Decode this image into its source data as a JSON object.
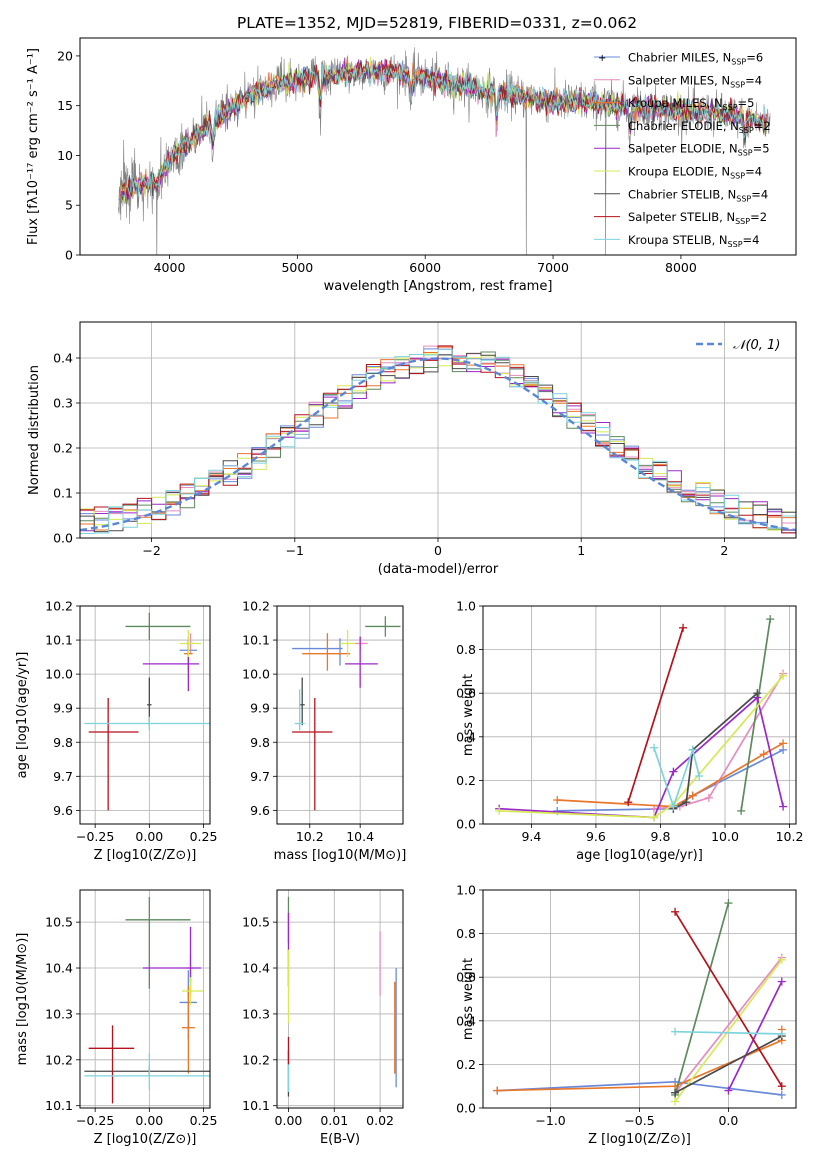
{
  "figure_title": "PLATE=1352, MJD=52819, FIBERID=0331, z=0.062",
  "models": [
    {
      "name": "Chabrier MILES",
      "nssp": "6",
      "color": "#6a8ad9"
    },
    {
      "name": "Salpeter MILES",
      "nssp": "4",
      "color": "#e88bbf"
    },
    {
      "name": "Kroupa MILES",
      "nssp": "5",
      "color": "#e8762b"
    },
    {
      "name": "Chabrier ELODIE",
      "nssp": "2",
      "color": "#5d8a5e"
    },
    {
      "name": "Salpeter ELODIE",
      "nssp": "5",
      "color": "#9b28c8"
    },
    {
      "name": "Kroupa ELODIE",
      "nssp": "4",
      "color": "#d5ea55"
    },
    {
      "name": "Chabrier STELIB",
      "nssp": "4",
      "color": "#4a4a4a"
    },
    {
      "name": "Salpeter STELIB",
      "nssp": "2",
      "color": "#b5121b"
    },
    {
      "name": "Kroupa STELIB",
      "nssp": "4",
      "color": "#7dd4dc"
    }
  ],
  "chart_data": [
    {
      "id": "spectrum",
      "type": "line",
      "xlabel": "wavelength [Angstrom, rest frame]",
      "ylabel": "Flux [fλ10⁻¹⁷ erg cm⁻² s⁻¹ A⁻¹]",
      "xlim": [
        3300,
        8900
      ],
      "ylim": [
        0,
        21.8
      ],
      "xticks": [
        4000,
        5000,
        6000,
        7000,
        8000
      ],
      "yticks": [
        0,
        5,
        10,
        15,
        20
      ],
      "data_color": "#808080",
      "data_range": [
        3600,
        8700
      ],
      "continuum": {
        "x": [
          3600,
          3700,
          3800,
          3900,
          4000,
          4100,
          4200,
          4300,
          4400,
          4600,
          4800,
          5000,
          5200,
          5400,
          5600,
          5800,
          6000,
          6200,
          6400,
          6600,
          6800,
          7000,
          7200,
          7400,
          7600,
          7800,
          8000,
          8200,
          8400,
          8600,
          8700
        ],
        "y": [
          6.0,
          6.8,
          7.2,
          7.0,
          9.8,
          10.8,
          11.8,
          13.0,
          14.0,
          15.8,
          17.0,
          17.6,
          18.1,
          18.3,
          18.4,
          18.3,
          17.8,
          17.2,
          16.7,
          16.3,
          15.8,
          15.4,
          15.4,
          15.2,
          15.0,
          14.7,
          14.5,
          14.3,
          14.0,
          13.5,
          13.2
        ]
      },
      "dips_data_range": [
        [
          4340,
          3.2
        ],
        [
          5180,
          4.5
        ],
        [
          5890,
          2.8
        ],
        [
          6560,
          4.0
        ],
        [
          7600,
          3.5
        ],
        [
          8500,
          2.5
        ]
      ],
      "drops_to_zero": [
        3900,
        6790,
        7410
      ],
      "legend_position": "top-right"
    },
    {
      "id": "residuals",
      "type": "step-histogram",
      "xlabel": "(data-model)/error",
      "ylabel": "Normed distribution",
      "xlim": [
        -2.5,
        2.5
      ],
      "ylim": [
        0,
        0.48
      ],
      "xticks": [
        -2,
        -1,
        0,
        1,
        2
      ],
      "yticks": [
        0.0,
        0.1,
        0.2,
        0.3,
        0.4
      ],
      "bin_width": 0.1,
      "reference_curve": {
        "label": "𝒩(0, 1)",
        "color": "#5b87d6",
        "style": "dashed",
        "mean": 0,
        "sigma": 1
      },
      "grid": true,
      "legend_position": "top-right"
    },
    {
      "id": "age_vs_Z",
      "type": "errorbar",
      "xlabel": "Z [log10(Z/Z⊙)]",
      "ylabel": "age  [log10(age/yr)]",
      "xlim": [
        -0.32,
        0.28
      ],
      "ylim": [
        9.56,
        10.2
      ],
      "xticks": [
        -0.25,
        0.0,
        0.25
      ],
      "yticks": [
        9.6,
        9.7,
        9.8,
        9.9,
        10.0,
        10.1,
        10.2
      ],
      "grid": true,
      "points": [
        {
          "model": 0,
          "x": 0.18,
          "xerr": [
            0.04,
            0.04
          ],
          "y": 10.07,
          "yerr": [
            0.03,
            0.03
          ]
        },
        {
          "model": 1,
          "x": 0.19,
          "xerr": [
            0.02,
            0.02
          ],
          "y": 10.09,
          "yerr": [
            0.03,
            0.03
          ]
        },
        {
          "model": 2,
          "x": 0.18,
          "xerr": [
            0.02,
            0.02
          ],
          "y": 10.06,
          "yerr": [
            0.05,
            0.05
          ]
        },
        {
          "model": 3,
          "x": 0.0,
          "xerr": [
            0.11,
            0.19
          ],
          "y": 10.14,
          "yerr": [
            0.04,
            0.04
          ]
        },
        {
          "model": 4,
          "x": 0.18,
          "xerr": [
            0.21,
            0.05
          ],
          "y": 10.03,
          "yerr": [
            0.08,
            0.07
          ]
        },
        {
          "model": 5,
          "x": 0.18,
          "xerr": [
            0.04,
            0.06
          ],
          "y": 10.09,
          "yerr": [
            0.04,
            0.04
          ]
        },
        {
          "model": 6,
          "x": 0.0,
          "xerr": [
            0.01,
            0.01
          ],
          "y": 9.91,
          "yerr": [
            0.06,
            0.08
          ]
        },
        {
          "model": 7,
          "x": -0.19,
          "xerr": [
            0.09,
            0.14
          ],
          "y": 9.83,
          "yerr": [
            0.23,
            0.1
          ]
        },
        {
          "model": 8,
          "x": 0.0,
          "xerr": [
            0.3,
            0.3
          ],
          "y": 9.855,
          "yerr": [
            0.02,
            0.02
          ]
        }
      ]
    },
    {
      "id": "age_vs_mass",
      "type": "errorbar",
      "xlabel": "mass [log10(M/M⊙)]",
      "ylabel": "",
      "xlim": [
        10.07,
        10.57
      ],
      "ylim": [
        9.56,
        10.2
      ],
      "xticks": [
        10.2,
        10.4
      ],
      "yticks": [
        9.6,
        9.7,
        9.8,
        9.9,
        10.0,
        10.1,
        10.2
      ],
      "grid": true,
      "points": [
        {
          "model": 0,
          "x": 10.32,
          "xerr": [
            0.19,
            0.01
          ],
          "y": 10.075,
          "yerr": [
            0.05,
            0.03
          ]
        },
        {
          "model": 1,
          "x": 10.4,
          "xerr": [
            0.02,
            0.03
          ],
          "y": 10.09,
          "yerr": [
            0.02,
            0.02
          ]
        },
        {
          "model": 2,
          "x": 10.27,
          "xerr": [
            0.1,
            0.09
          ],
          "y": 10.06,
          "yerr": [
            0.05,
            0.06
          ]
        },
        {
          "model": 3,
          "x": 10.5,
          "xerr": [
            0.08,
            0.06
          ],
          "y": 10.14,
          "yerr": [
            0.03,
            0.03
          ]
        },
        {
          "model": 4,
          "x": 10.4,
          "xerr": [
            0.06,
            0.07
          ],
          "y": 10.03,
          "yerr": [
            0.07,
            0.08
          ]
        },
        {
          "model": 5,
          "x": 10.35,
          "xerr": [
            0.03,
            0.03
          ],
          "y": 10.09,
          "yerr": [
            0.04,
            0.04
          ]
        },
        {
          "model": 6,
          "x": 10.17,
          "xerr": [
            0.01,
            0.01
          ],
          "y": 9.91,
          "yerr": [
            0.06,
            0.08
          ]
        },
        {
          "model": 7,
          "x": 10.22,
          "xerr": [
            0.09,
            0.07
          ],
          "y": 9.83,
          "yerr": [
            0.23,
            0.1
          ]
        },
        {
          "model": 8,
          "x": 10.16,
          "xerr": [
            0.02,
            0.02
          ],
          "y": 9.855,
          "yerr": [
            0.02,
            0.1
          ]
        }
      ]
    },
    {
      "id": "weight_vs_age",
      "type": "line",
      "xlabel": "age  [log10(age/yr)]",
      "ylabel": "mass weight",
      "xlim": [
        9.25,
        10.22
      ],
      "ylim": [
        0.0,
        1.0
      ],
      "xticks": [
        9.4,
        9.6,
        9.8,
        10.0,
        10.2
      ],
      "yticks": [
        0.0,
        0.2,
        0.4,
        0.6,
        0.8,
        1.0
      ],
      "grid": true,
      "series": [
        {
          "model": 0,
          "x": [
            9.48,
            9.84,
            9.9,
            10.18
          ],
          "y": [
            0.06,
            0.07,
            0.13,
            0.34
          ]
        },
        {
          "model": 1,
          "x": [
            9.78,
            9.86,
            9.95,
            10.18
          ],
          "y": [
            0.07,
            0.08,
            0.12,
            0.69
          ]
        },
        {
          "model": 2,
          "x": [
            9.48,
            9.84,
            9.9,
            10.12,
            10.18
          ],
          "y": [
            0.11,
            0.08,
            0.13,
            0.32,
            0.37
          ]
        },
        {
          "model": 3,
          "x": [
            10.05,
            10.14
          ],
          "y": [
            0.06,
            0.94
          ]
        },
        {
          "model": 4,
          "x": [
            9.3,
            9.78,
            9.84,
            10.1,
            10.18
          ],
          "y": [
            0.07,
            0.03,
            0.24,
            0.58,
            0.08
          ]
        },
        {
          "model": 5,
          "x": [
            9.3,
            9.78,
            9.84,
            10.18
          ],
          "y": [
            0.06,
            0.03,
            0.09,
            0.68
          ]
        },
        {
          "model": 6,
          "x": [
            9.84,
            9.88,
            9.9,
            10.1
          ],
          "y": [
            0.07,
            0.1,
            0.34,
            0.6
          ]
        },
        {
          "model": 7,
          "x": [
            9.7,
            9.87
          ],
          "y": [
            0.1,
            0.9
          ]
        },
        {
          "model": 8,
          "x": [
            9.78,
            9.84,
            9.9,
            9.92
          ],
          "y": [
            0.35,
            0.08,
            0.34,
            0.22
          ]
        }
      ]
    },
    {
      "id": "mass_vs_Z",
      "type": "errorbar",
      "xlabel": "Z [log10(Z/Z⊙)]",
      "ylabel": "mass [log10(M/M⊙)]",
      "xlim": [
        -0.32,
        0.28
      ],
      "ylim": [
        10.095,
        10.57
      ],
      "xticks": [
        -0.25,
        0.0,
        0.25
      ],
      "yticks": [
        10.1,
        10.2,
        10.3,
        10.4,
        10.5
      ],
      "grid": true,
      "points": [
        {
          "model": 0,
          "x": 0.18,
          "xerr": [
            0.04,
            0.04
          ],
          "y": 10.325,
          "yerr": [
            0.08,
            0.07
          ]
        },
        {
          "model": 1,
          "x": 0.19,
          "xerr": [
            0.02,
            0.02
          ],
          "y": 10.4,
          "yerr": [
            0.03,
            0.03
          ]
        },
        {
          "model": 2,
          "x": 0.18,
          "xerr": [
            0.03,
            0.03
          ],
          "y": 10.27,
          "yerr": [
            0.1,
            0.09
          ]
        },
        {
          "model": 3,
          "x": 0.0,
          "xerr": [
            0.11,
            0.19
          ],
          "y": 10.505,
          "yerr": [
            0.15,
            0.05
          ]
        },
        {
          "model": 4,
          "x": 0.19,
          "xerr": [
            0.22,
            0.05
          ],
          "y": 10.4,
          "yerr": [
            0.06,
            0.09
          ]
        },
        {
          "model": 5,
          "x": 0.19,
          "xerr": [
            0.04,
            0.06
          ],
          "y": 10.35,
          "yerr": [
            0.03,
            0.03
          ]
        },
        {
          "model": 6,
          "x": 0.0,
          "xerr": [
            0.3,
            0.3
          ],
          "y": 10.175,
          "yerr": [
            0.01,
            0.01
          ]
        },
        {
          "model": 7,
          "x": -0.17,
          "xerr": [
            0.11,
            0.1
          ],
          "y": 10.225,
          "yerr": [
            0.12,
            0.05
          ]
        },
        {
          "model": 8,
          "x": 0.0,
          "xerr": [
            0.3,
            0.3
          ],
          "y": 10.165,
          "yerr": [
            0.03,
            0.05
          ]
        }
      ]
    },
    {
      "id": "mass_vs_EBV",
      "type": "errorbar",
      "xlabel": "E(B-V)",
      "ylabel": "",
      "xlim": [
        -0.0025,
        0.025
      ],
      "ylim": [
        10.095,
        10.57
      ],
      "xticks": [
        0.0,
        0.01,
        0.02
      ],
      "yticks": [
        10.1,
        10.2,
        10.3,
        10.4,
        10.5
      ],
      "grid": true,
      "points": [
        {
          "model": 0,
          "x": 0.0235,
          "xerr": [
            0.0,
            0.0
          ],
          "y": 10.27,
          "yerr": [
            0.13,
            0.13
          ]
        },
        {
          "model": 1,
          "x": 0.02,
          "xerr": [
            0.0,
            0.0
          ],
          "y": 10.41,
          "yerr": [
            0.07,
            0.07
          ]
        },
        {
          "model": 2,
          "x": 0.0232,
          "xerr": [
            0.0,
            0.0
          ],
          "y": 10.27,
          "yerr": [
            0.1,
            0.1
          ]
        },
        {
          "model": 3,
          "x": 0.0,
          "xerr": [
            0.0,
            0.0
          ],
          "y": 10.505,
          "yerr": [
            0.05,
            0.05
          ]
        },
        {
          "model": 4,
          "x": 0.0,
          "xerr": [
            0.0,
            0.0
          ],
          "y": 10.44,
          "yerr": [
            0.08,
            0.08
          ]
        },
        {
          "model": 5,
          "x": 0.0,
          "xerr": [
            0.0,
            0.0
          ],
          "y": 10.36,
          "yerr": [
            0.08,
            0.08
          ]
        },
        {
          "model": 6,
          "x": 0.0,
          "xerr": [
            0.0,
            0.0
          ],
          "y": 10.17,
          "yerr": [
            0.05,
            0.05
          ]
        },
        {
          "model": 7,
          "x": 0.0,
          "xerr": [
            0.0,
            0.0
          ],
          "y": 10.22,
          "yerr": [
            0.03,
            0.03
          ]
        },
        {
          "model": 8,
          "x": 0.0,
          "xerr": [
            0.0,
            0.0
          ],
          "y": 10.16,
          "yerr": [
            0.03,
            0.03
          ]
        }
      ]
    },
    {
      "id": "weight_vs_Z",
      "type": "line",
      "xlabel": "Z [log10(Z/Z⊙)]",
      "ylabel": "mass weight",
      "xlim": [
        -1.38,
        0.38
      ],
      "ylim": [
        0.0,
        1.0
      ],
      "xticks": [
        -1.0,
        -0.5,
        0.0
      ],
      "yticks": [
        0.0,
        0.2,
        0.4,
        0.6,
        0.8,
        1.0
      ],
      "grid": true,
      "series": [
        {
          "model": 0,
          "x": [
            -1.3,
            -0.3,
            0.3
          ],
          "y": [
            0.08,
            0.12,
            0.06
          ]
        },
        {
          "model": 1,
          "x": [
            -0.3,
            0.3
          ],
          "y": [
            0.07,
            0.69
          ]
        },
        {
          "model": 2,
          "x": [
            -1.3,
            -0.3,
            0.3,
            0.3
          ],
          "y": [
            0.08,
            0.1,
            0.31,
            0.36
          ]
        },
        {
          "model": 3,
          "x": [
            -0.3,
            0.0
          ],
          "y": [
            0.06,
            0.94
          ]
        },
        {
          "model": 4,
          "x": [
            0.0,
            0.3
          ],
          "y": [
            0.08,
            0.58
          ]
        },
        {
          "model": 5,
          "x": [
            -0.3,
            0.3
          ],
          "y": [
            0.03,
            0.68
          ]
        },
        {
          "model": 6,
          "x": [
            -0.3,
            0.3
          ],
          "y": [
            0.07,
            0.33
          ]
        },
        {
          "model": 7,
          "x": [
            -0.3,
            0.3
          ],
          "y": [
            0.9,
            0.1
          ]
        },
        {
          "model": 8,
          "x": [
            -0.3,
            0.3
          ],
          "y": [
            0.35,
            0.34
          ]
        }
      ]
    }
  ]
}
